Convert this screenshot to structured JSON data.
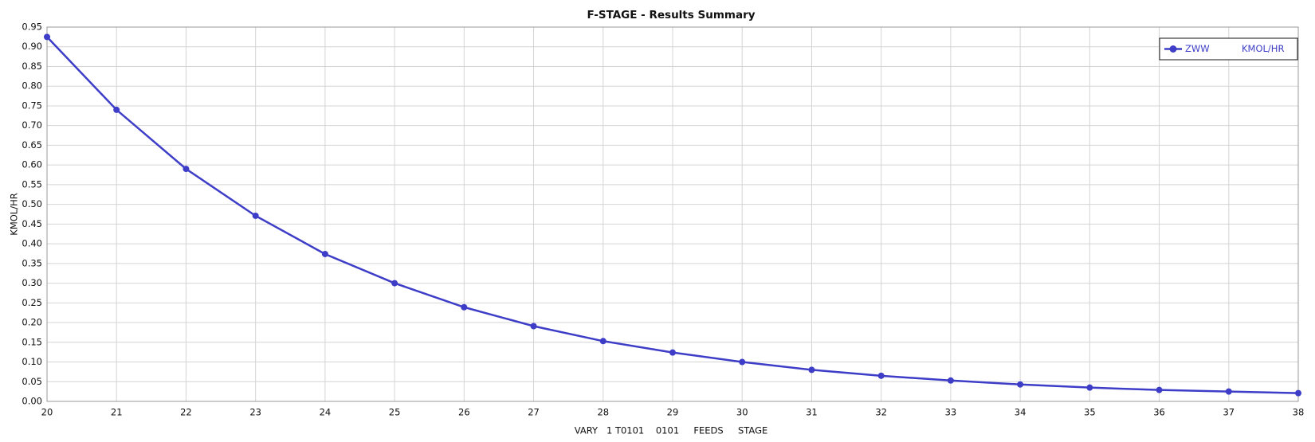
{
  "chart_data": {
    "type": "line",
    "title": "F-STAGE - Results Summary",
    "x_label": "VARY   1 T0101    0101     FEEDS     STAGE",
    "y_label": "KMOL/HR",
    "x": [
      20,
      21,
      22,
      23,
      24,
      25,
      26,
      27,
      28,
      29,
      30,
      31,
      32,
      33,
      34,
      35,
      36,
      37,
      38
    ],
    "series": [
      {
        "name": "ZWW",
        "unit": "KMOL/HR",
        "color": "#3d3dc8",
        "values": [
          0.925,
          0.74,
          0.59,
          0.471,
          0.374,
          0.3,
          0.239,
          0.191,
          0.153,
          0.124,
          0.1,
          0.08,
          0.065,
          0.053,
          0.043,
          0.035,
          0.029,
          0.025,
          0.021
        ]
      }
    ],
    "xlim": [
      20,
      38
    ],
    "xticks": [
      20,
      21,
      22,
      23,
      24,
      25,
      26,
      27,
      28,
      29,
      30,
      31,
      32,
      33,
      34,
      35,
      36,
      37,
      38
    ],
    "ylim": [
      0,
      0.95
    ],
    "yticks": [
      {
        "value": 0,
        "label": "0.00"
      },
      {
        "value": 0.05,
        "label": "0.05"
      },
      {
        "value": 0.1,
        "label": "0.10"
      },
      {
        "value": 0.15,
        "label": "0.15"
      },
      {
        "value": 0.2,
        "label": "0.20"
      },
      {
        "value": 0.25,
        "label": "0.25"
      },
      {
        "value": 0.3,
        "label": "0.30"
      },
      {
        "value": 0.35,
        "label": "0.35"
      },
      {
        "value": 0.4,
        "label": "0.40"
      },
      {
        "value": 0.45,
        "label": "0.45"
      },
      {
        "value": 0.5,
        "label": "0.50"
      },
      {
        "value": 0.55,
        "label": "0.55"
      },
      {
        "value": 0.6,
        "label": "0.60"
      },
      {
        "value": 0.65,
        "label": "0.65"
      },
      {
        "value": 0.7,
        "label": "0.70"
      },
      {
        "value": 0.75,
        "label": "0.75"
      },
      {
        "value": 0.8,
        "label": "0.80"
      },
      {
        "value": 0.85,
        "label": "0.85"
      },
      {
        "value": 0.9,
        "label": "0.90"
      },
      {
        "value": 0.95,
        "label": "0.95"
      }
    ],
    "grid": true,
    "legend": "upper right"
  }
}
